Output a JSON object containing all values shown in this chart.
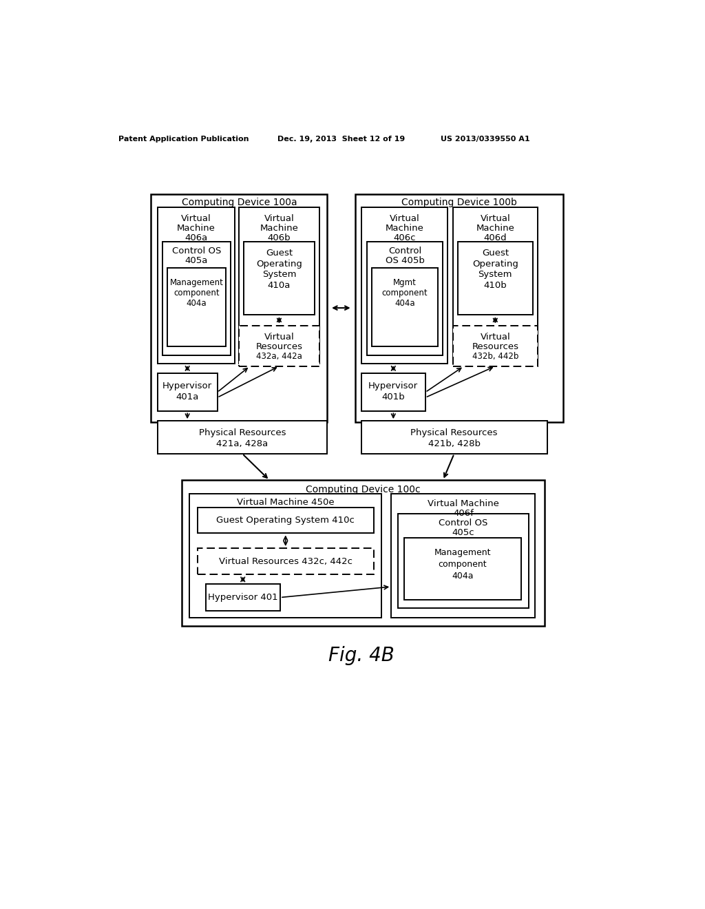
{
  "bg_color": "#ffffff",
  "header_left": "Patent Application Publication",
  "header_mid": "Dec. 19, 2013  Sheet 12 of 19",
  "header_right": "US 2013/0339550 A1",
  "fig_label": "Fig. 4B"
}
